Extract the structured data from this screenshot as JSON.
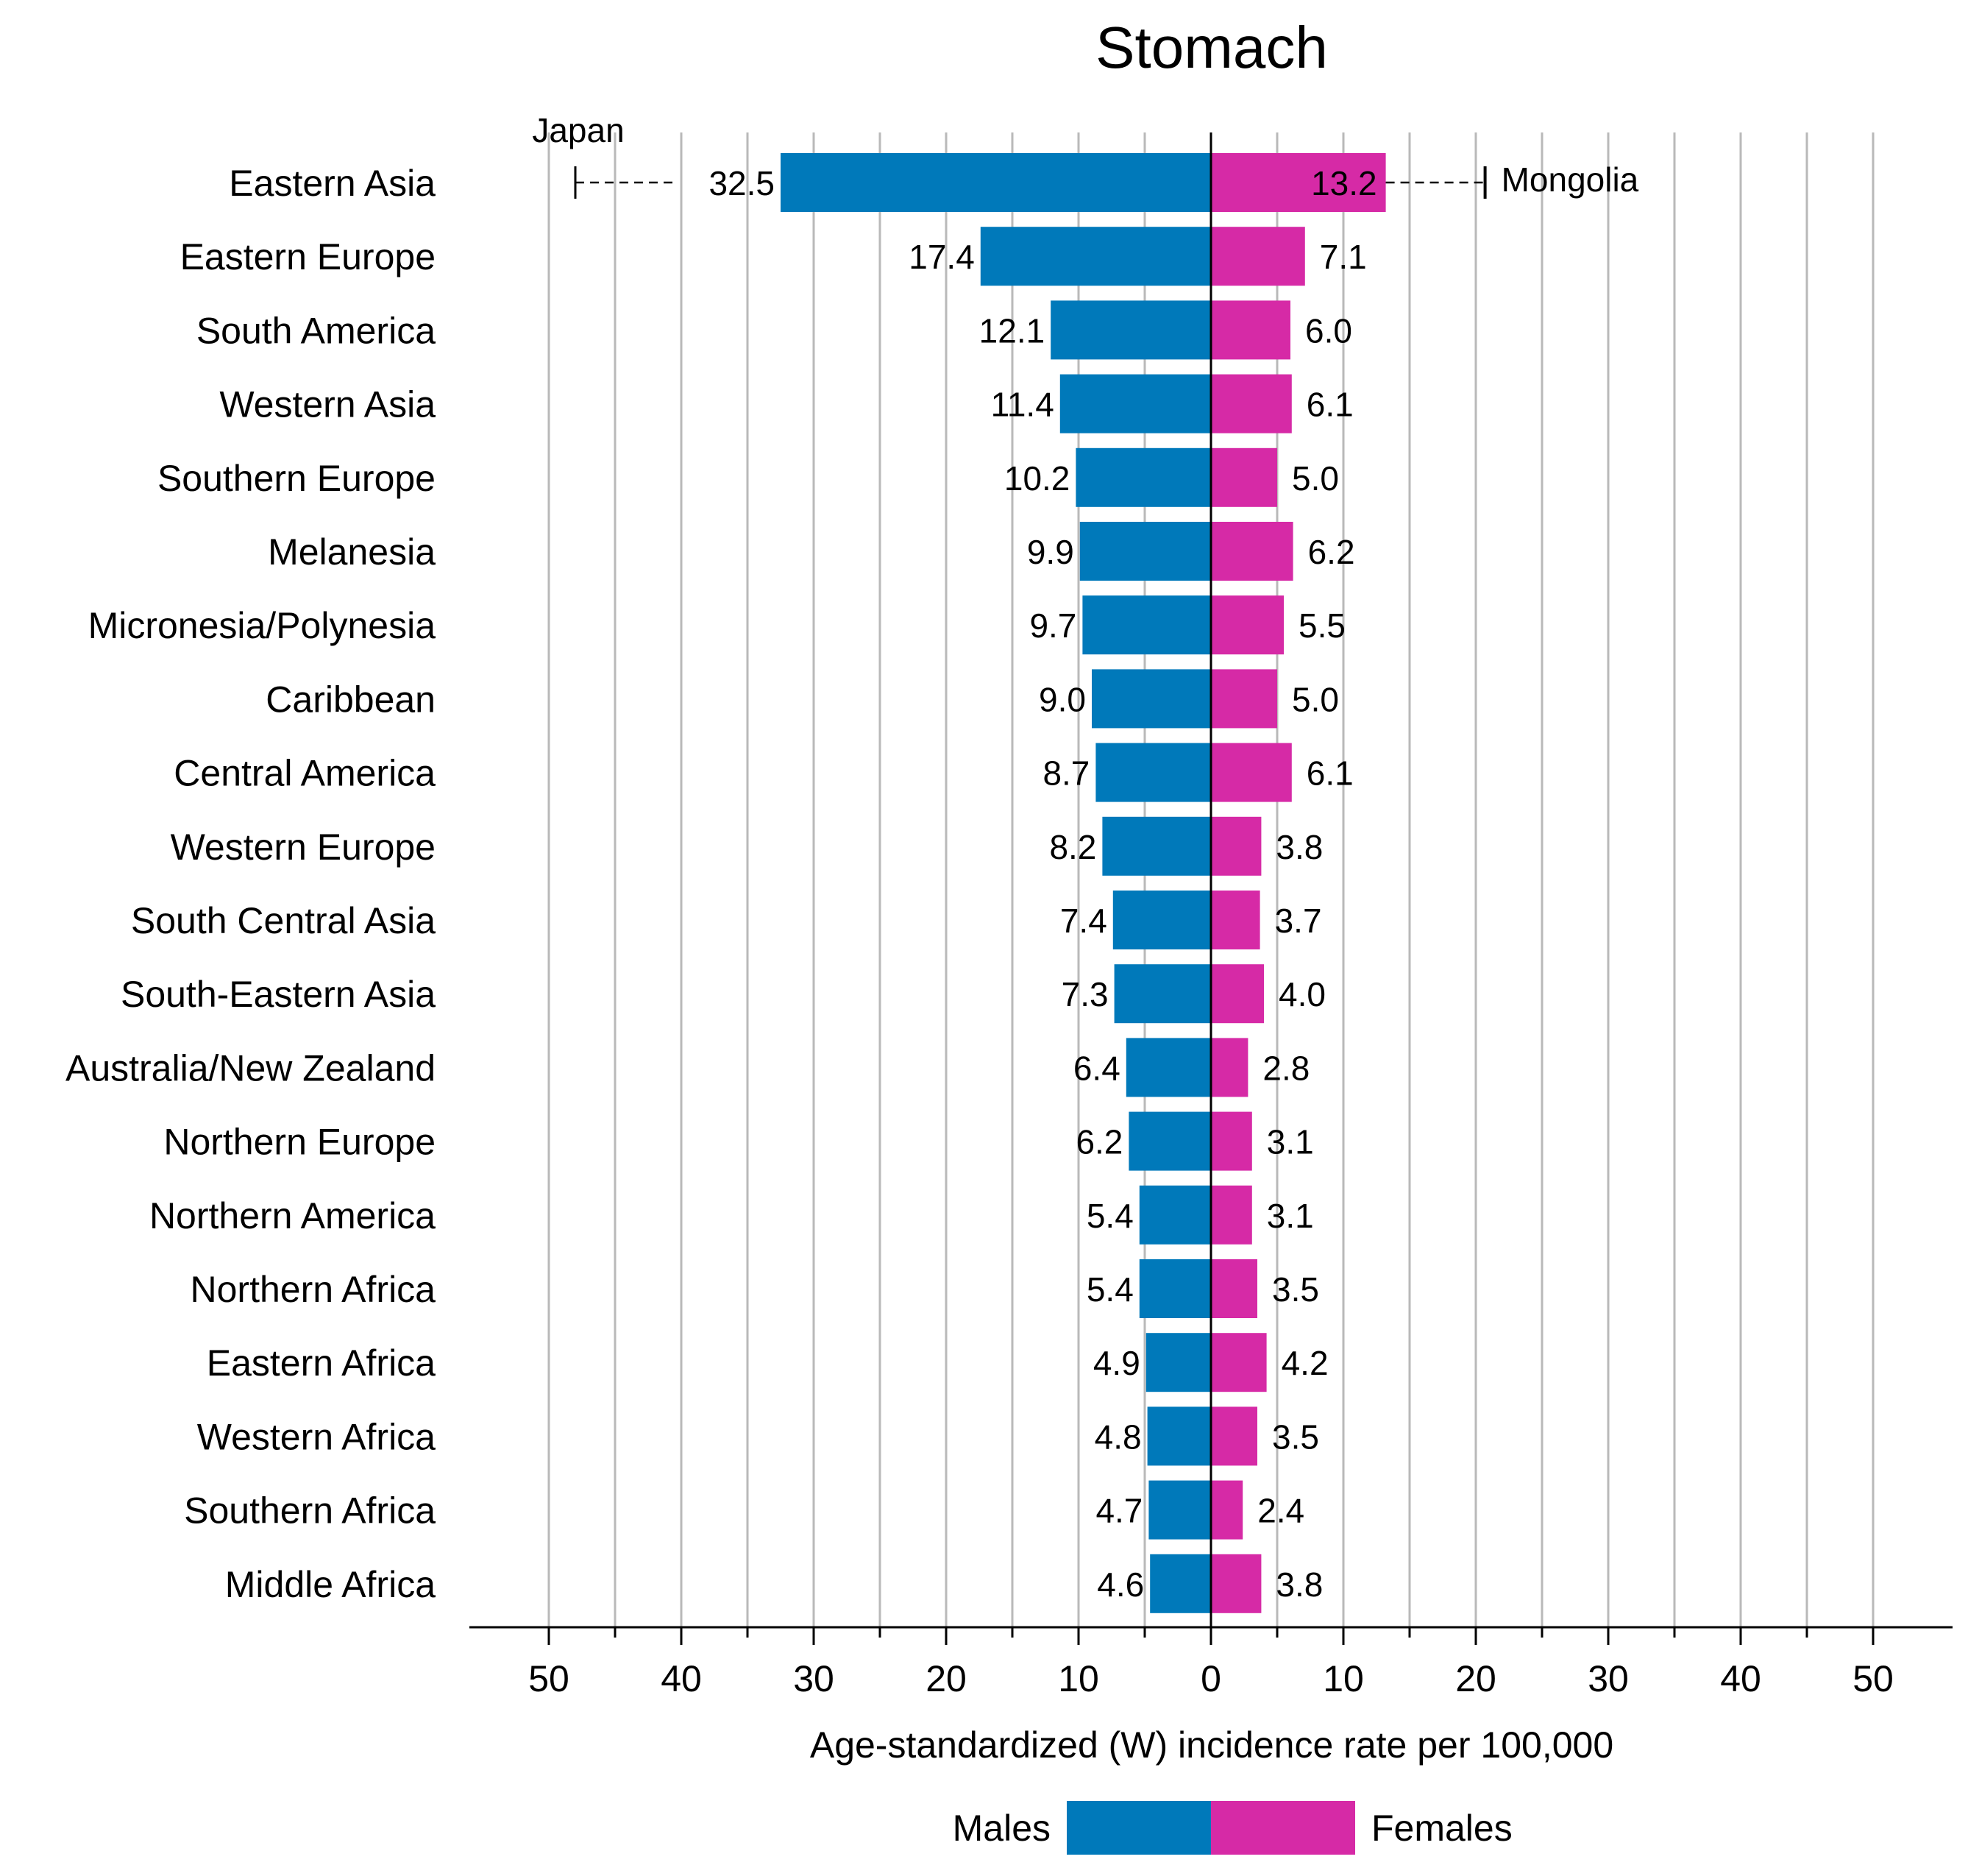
{
  "chart_data": {
    "type": "bar",
    "orientation": "horizontal",
    "layout": "diverging",
    "title": "Stomach",
    "xlabel": "Age-standardized (W) incidence rate per 100,000",
    "ylabel": "",
    "xlim": [
      -56,
      56
    ],
    "ticks": [
      -50,
      -45,
      -40,
      -35,
      -30,
      -25,
      -20,
      -15,
      -10,
      -5,
      0,
      5,
      10,
      15,
      20,
      25,
      30,
      35,
      40,
      45,
      50
    ],
    "tick_labels": [
      "50",
      "40",
      "30",
      "20",
      "10",
      "0",
      "10",
      "20",
      "30",
      "40",
      "50"
    ],
    "categories": [
      "Eastern Asia",
      "Eastern Europe",
      "South America",
      "Western Asia",
      "Southern Europe",
      "Melanesia",
      "Micronesia/Polynesia",
      "Caribbean",
      "Central America",
      "Western Europe",
      "South Central Asia",
      "South-Eastern Asia",
      "Australia/New Zealand",
      "Northern Europe",
      "Northern America",
      "Northern Africa",
      "Eastern Africa",
      "Western Africa",
      "Southern Africa",
      "Middle Africa"
    ],
    "series": [
      {
        "name": "Males",
        "color": "#0079BA",
        "values": [
          32.5,
          17.4,
          12.1,
          11.4,
          10.2,
          9.9,
          9.7,
          9.0,
          8.7,
          8.2,
          7.4,
          7.3,
          6.4,
          6.2,
          5.4,
          5.4,
          4.9,
          4.8,
          4.7,
          4.6
        ],
        "labels": [
          "32.5",
          "17.4",
          "12.1",
          "11.4",
          "10.2",
          "9.9",
          "9.7",
          "9.0",
          "8.7",
          "8.2",
          "7.4",
          "7.3",
          "6.4",
          "6.2",
          "5.4",
          "5.4",
          "4.9",
          "4.8",
          "4.7",
          "4.6"
        ]
      },
      {
        "name": "Females",
        "color": "#D62AA6",
        "values": [
          13.2,
          7.1,
          6.0,
          6.1,
          5.0,
          6.2,
          5.5,
          5.0,
          6.1,
          3.8,
          3.7,
          4.0,
          2.8,
          3.1,
          3.1,
          3.5,
          4.2,
          3.5,
          2.4,
          3.8
        ],
        "labels": [
          "13.2",
          "7.1",
          "6.0",
          "6.1",
          "5.0",
          "6.2",
          "5.5",
          "5.0",
          "6.1",
          "3.8",
          "3.7",
          "4.0",
          "2.8",
          "3.1",
          "3.1",
          "3.5",
          "4.2",
          "3.5",
          "2.4",
          "3.8"
        ]
      }
    ],
    "annotations": [
      {
        "category": "Eastern Asia",
        "series": "Males",
        "label": "Japan",
        "value": 48
      },
      {
        "category": "Eastern Asia",
        "series": "Females",
        "label": "Mongolia",
        "value": 20.7
      }
    ],
    "grid": true,
    "legend": {
      "position": "bottom-center",
      "items": [
        "Males",
        "Females"
      ]
    }
  }
}
